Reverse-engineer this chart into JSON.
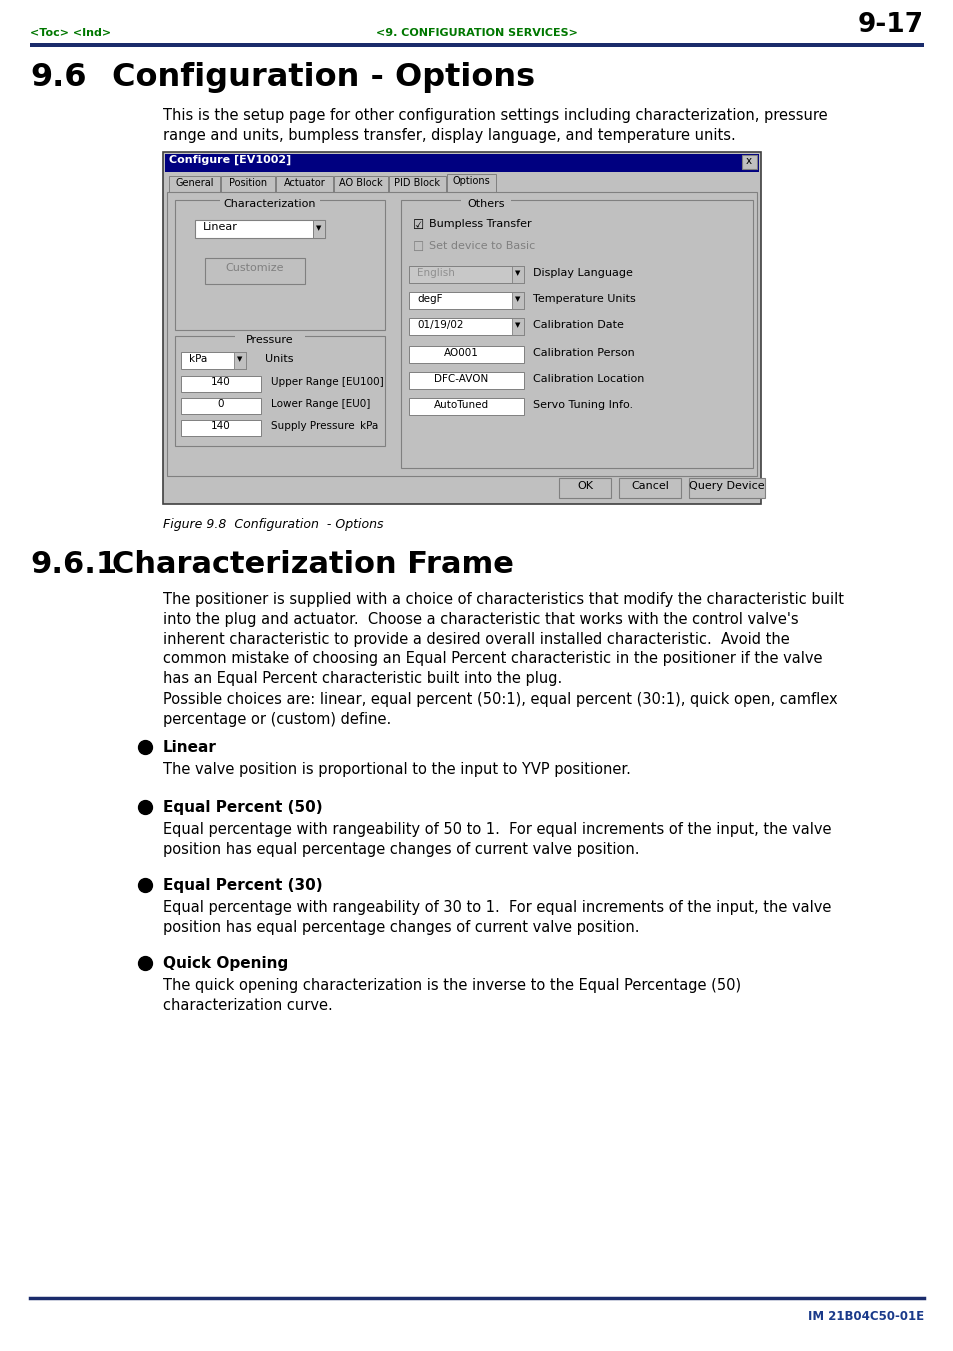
{
  "page_num": "9-17",
  "header_left": "<Toc> <Ind>",
  "header_center": "<9. CONFIGURATION SERVICES>",
  "header_color": "#007700",
  "header_line_color": "#1a2b6b",
  "section_number": "9.6",
  "section_name": "Configuration - Options",
  "intro_text": "This is the setup page for other configuration settings including characterization, pressure\nrange and units, bumpless transfer, display language, and temperature units.",
  "figure_caption": "Figure 9.8  Configuration  - Options",
  "subsection_num": "9.6.1",
  "subsection_title": "Characterization Frame",
  "subsection_body1": "The positioner is supplied with a choice of characteristics that modify the characteristic built\ninto the plug and actuator.  Choose a characteristic that works with the control valve's\ninherent characteristic to provide a desired overall installed characteristic.  Avoid the\ncommon mistake of choosing an Equal Percent characteristic in the positioner if the valve\nhas an Equal Percent characteristic built into the plug.",
  "possible_choices": "Possible choices are: linear, equal percent (50:1), equal percent (30:1), quick open, camflex\npercentage or (custom) define.",
  "bullet_items": [
    {
      "title": "Linear",
      "body": "The valve position is proportional to the input to YVP positioner.",
      "lines": 1
    },
    {
      "title": "Equal Percent (50)",
      "body": "Equal percentage with rangeability of 50 to 1.  For equal increments of the input, the valve\nposition has equal percentage changes of current valve position.",
      "lines": 2
    },
    {
      "title": "Equal Percent (30)",
      "body": "Equal percentage with rangeability of 30 to 1.  For equal increments of the input, the valve\nposition has equal percentage changes of current valve position.",
      "lines": 2
    },
    {
      "title": "Quick Opening",
      "body": "The quick opening characterization is the inverse to the Equal Percentage (50)\ncharacterization curve.",
      "lines": 2
    }
  ],
  "footer_text": "IM 21B04C50-01E",
  "footer_color": "#1a3a8a",
  "bg_color": "#ffffff",
  "text_color": "#000000",
  "dialog_title": "Configure [EV1002]",
  "tab_names": [
    "General",
    "Position",
    "Actuator",
    "AO Block",
    "PID Block",
    "Options"
  ]
}
